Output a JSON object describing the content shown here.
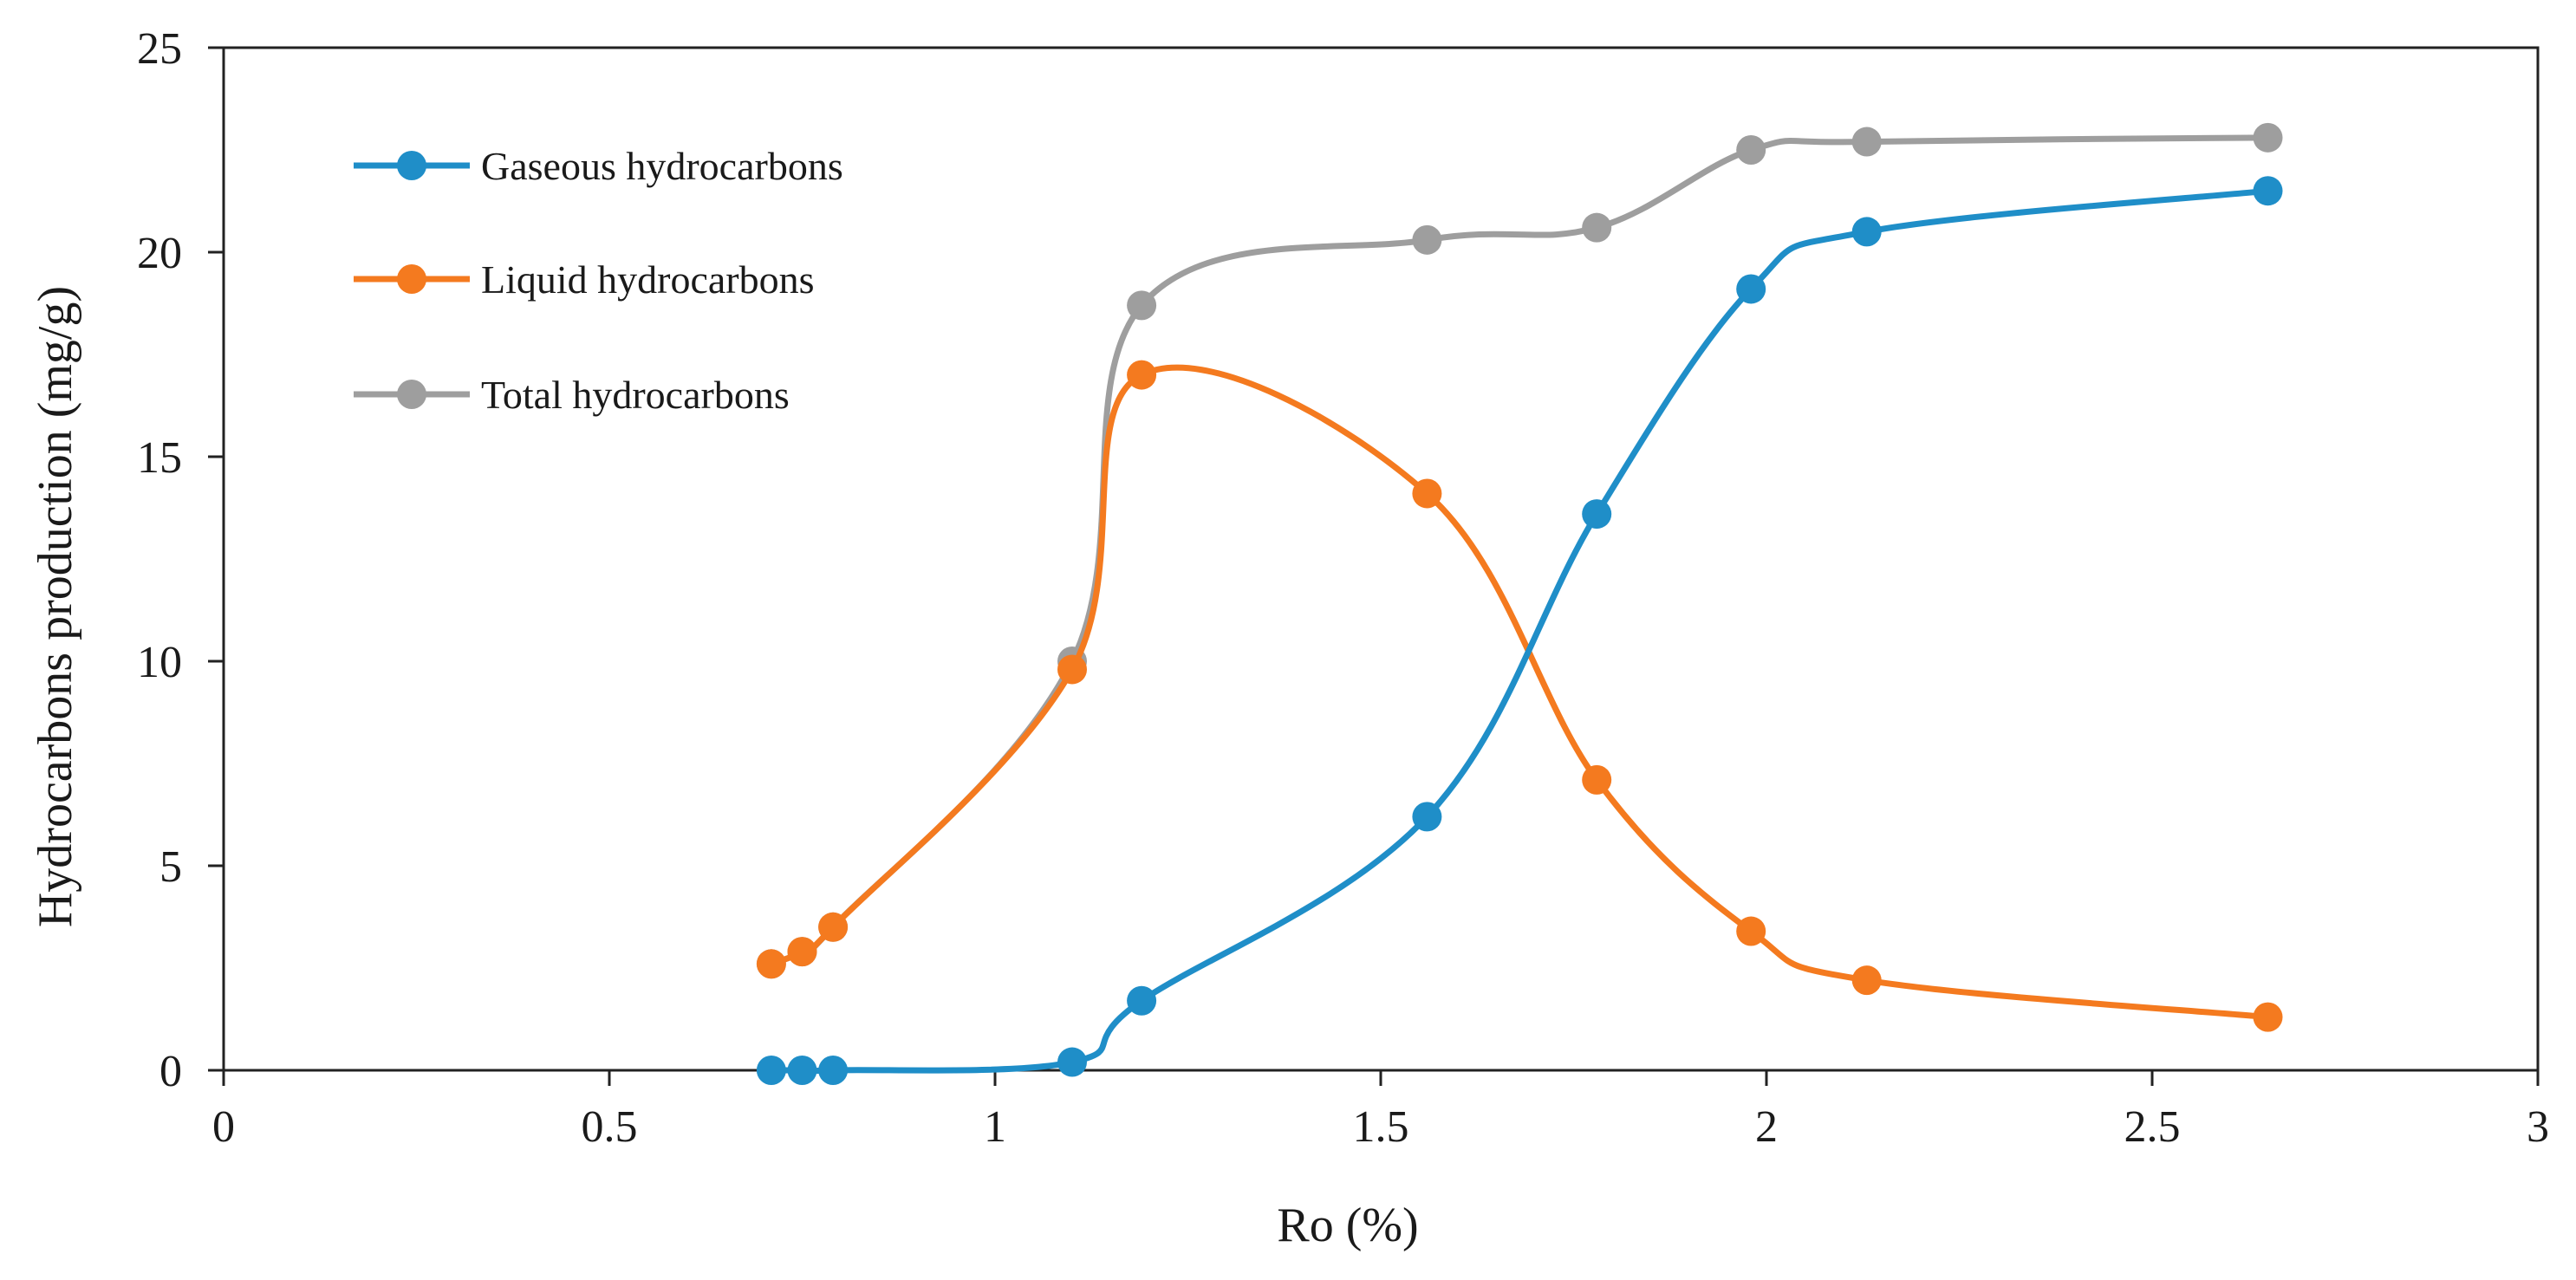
{
  "chart_data": {
    "type": "line",
    "title": "",
    "xlabel": "Ro (%)",
    "ylabel": "Hydrocarbons production (mg/g)",
    "xlim": [
      0,
      3
    ],
    "ylim": [
      0,
      25
    ],
    "xticks": [
      0,
      0.5,
      1,
      1.5,
      2,
      2.5,
      3
    ],
    "xtick_labels": [
      "0",
      "0.5",
      "1",
      "1.5",
      "2",
      "2.5",
      "3"
    ],
    "yticks": [
      0,
      5,
      10,
      15,
      20,
      25
    ],
    "ytick_labels": [
      "0",
      "5",
      "10",
      "15",
      "20",
      "25"
    ],
    "grid": false,
    "legend_position": "top-left",
    "smooth": true,
    "x": [
      0.71,
      0.75,
      0.79,
      1.1,
      1.19,
      1.56,
      1.78,
      1.98,
      2.13,
      2.65
    ],
    "series": [
      {
        "name": "Gaseous hydrocarbons",
        "color": "#1f8ec8",
        "values": [
          0.0,
          0.0,
          0.0,
          0.2,
          1.7,
          6.2,
          13.6,
          19.1,
          20.5,
          21.5
        ]
      },
      {
        "name": "Liquid hydrocarbons",
        "color": "#f47a1f",
        "values": [
          2.6,
          2.9,
          3.5,
          9.8,
          17.0,
          14.1,
          7.1,
          3.4,
          2.2,
          1.3
        ]
      },
      {
        "name": "Total hydrocarbons",
        "color": "#9e9e9e",
        "values": [
          2.6,
          2.9,
          3.5,
          10.0,
          18.7,
          20.3,
          20.6,
          22.5,
          22.7,
          22.8
        ]
      }
    ]
  }
}
